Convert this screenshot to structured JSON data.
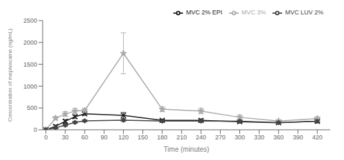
{
  "chart_data": {
    "type": "line",
    "xlabel": "Time (minutes)",
    "ylabel": "Concentration of mepivacaine (ng/mL)",
    "xlim": [
      -5,
      440
    ],
    "ylim": [
      0,
      2500
    ],
    "xticks": [
      0,
      30,
      60,
      90,
      120,
      150,
      180,
      210,
      240,
      270,
      300,
      330,
      360,
      390,
      420
    ],
    "yticks": [
      0,
      500,
      1000,
      1500,
      2000,
      2500
    ],
    "x": [
      0,
      15,
      30,
      45,
      60,
      120,
      180,
      240,
      300,
      360,
      420
    ],
    "series": [
      {
        "name": "MVC 2% EPI",
        "color": "#1a1a1a",
        "marker": "x",
        "values": [
          0,
          80,
          195,
          300,
          365,
          330,
          215,
          215,
          185,
          160,
          195
        ],
        "errors": [
          0,
          30,
          40,
          40,
          35,
          65,
          30,
          35,
          25,
          20,
          30
        ]
      },
      {
        "name": "MVC 3%",
        "color": "#aaaaaa",
        "marker": "star",
        "values": [
          0,
          265,
          360,
          430,
          440,
          1750,
          470,
          430,
          285,
          200,
          255
        ],
        "errors": [
          0,
          40,
          55,
          65,
          55,
          470,
          55,
          65,
          55,
          30,
          45
        ]
      },
      {
        "name": "MVC LUV 2%",
        "color": "#444444",
        "marker": "diamond",
        "values": [
          0,
          45,
          105,
          170,
          205,
          220,
          200,
          200,
          195,
          165,
          195
        ],
        "errors": [
          0,
          20,
          25,
          25,
          25,
          30,
          25,
          25,
          30,
          25,
          30
        ]
      }
    ],
    "legend": "upper right",
    "grid": false
  }
}
